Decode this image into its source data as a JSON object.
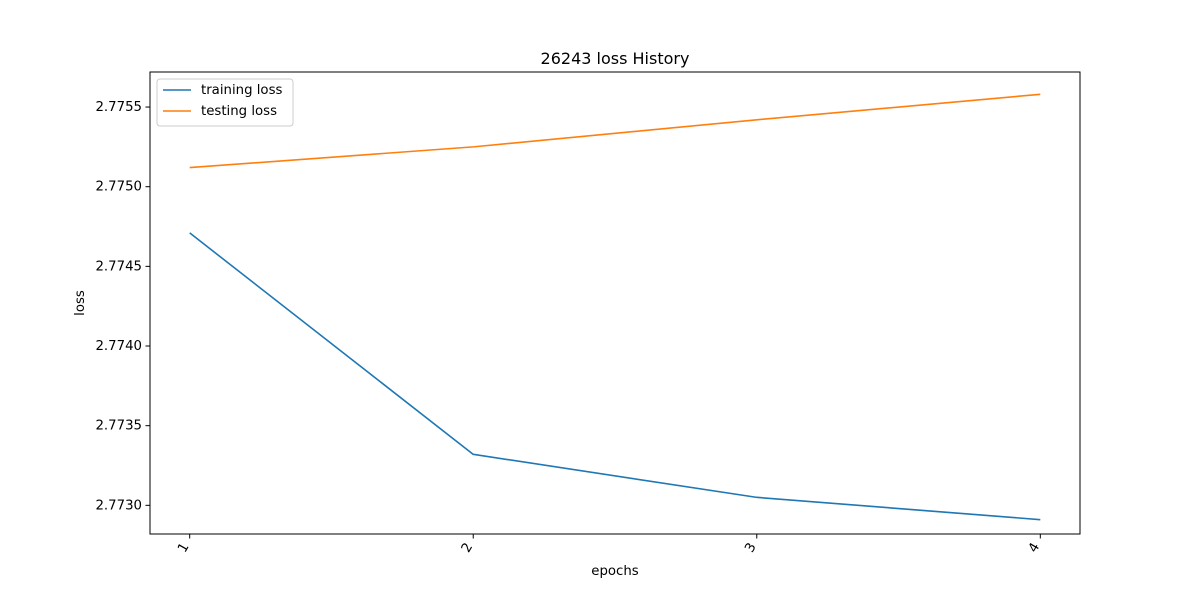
{
  "chart_data": {
    "type": "line",
    "title": "26243 loss History",
    "xlabel": "epochs",
    "ylabel": "loss",
    "x": [
      1,
      2,
      3,
      4
    ],
    "x_tick_labels": [
      "1",
      "2",
      "3",
      "4"
    ],
    "xlim": [
      0.86,
      4.14
    ],
    "ylim": [
      2.77282,
      2.77572
    ],
    "y_ticks": [
      2.773,
      2.7735,
      2.774,
      2.7745,
      2.775,
      2.7755
    ],
    "y_tick_labels": [
      "2.7730",
      "2.7735",
      "2.7740",
      "2.7745",
      "2.7750",
      "2.7755"
    ],
    "grid": false,
    "legend_position": "top-left",
    "series": [
      {
        "name": "training loss",
        "color": "#1f77b4",
        "values": [
          2.77471,
          2.77332,
          2.77305,
          2.77291
        ]
      },
      {
        "name": "testing loss",
        "color": "#ff7f0e",
        "values": [
          2.77512,
          2.77525,
          2.77542,
          2.77558
        ]
      }
    ]
  }
}
